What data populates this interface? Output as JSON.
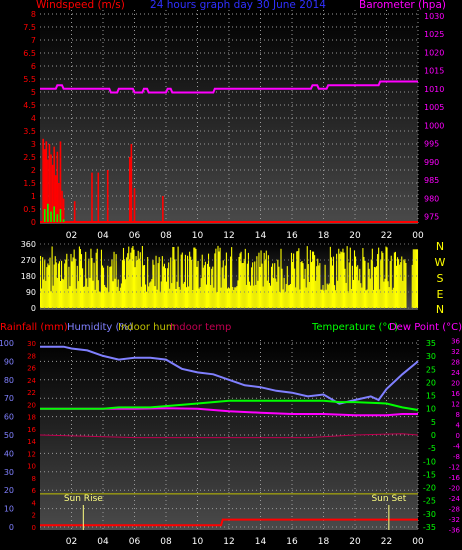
{
  "header": {
    "left_title": "Windspeed (m/s)",
    "center_title": "24 hours graph day  30 June 2014",
    "right_title": "Barometer (hpa)"
  },
  "bottom_header": {
    "rainfall": "Rainfall (mm)",
    "humidity": "Humidity (%)",
    "indoor_hum": "Indoor hum",
    "indoor_temp": "Indoor temp",
    "temperature": "Temperature (°C)",
    "dew_point": "Dew Point (°C)"
  },
  "compass": [
    "N",
    "W",
    "S",
    "E",
    "N"
  ],
  "sun_labels": {
    "rise": "Sun Rise",
    "set": "Sun Set"
  },
  "colors": {
    "wind": "#ff0000",
    "gust": "#00ff00",
    "barometer": "#ff00ff",
    "direction": "#ffff00",
    "humidity": "#8080ff",
    "temperature": "#00ff00",
    "dewpoint": "#ff00ff",
    "rain": "#ff0000",
    "indoor_temp": "#c00050",
    "indoor_hum": "#c0c000"
  },
  "chart_data": [
    {
      "type": "bar",
      "name": "Windspeed / Barometer",
      "x_ticks": [
        "02",
        "04",
        "06",
        "08",
        "10",
        "12",
        "14",
        "16",
        "18",
        "20",
        "22",
        "00"
      ],
      "y_ticks_left": [
        "0",
        "0.5",
        "1",
        "1.5",
        "2",
        "2.5",
        "3",
        "3.5",
        "4",
        "4.5",
        "5",
        "5.5",
        "6",
        "6.5",
        "7",
        "7.5",
        "8"
      ],
      "y_ticks_right": [
        "975",
        "980",
        "985",
        "990",
        "995",
        "1000",
        "1005",
        "1010",
        "1015",
        "1020",
        "1025",
        "1030"
      ],
      "ylim_left": [
        0,
        8
      ],
      "ylim_right": [
        973.5,
        1030.5
      ],
      "wind_bars": [
        {
          "x": 0.2,
          "v": 3.2
        },
        {
          "x": 0.3,
          "v": 2.8
        },
        {
          "x": 0.4,
          "v": 3.1
        },
        {
          "x": 0.5,
          "v": 2.4
        },
        {
          "x": 0.6,
          "v": 3.0
        },
        {
          "x": 0.7,
          "v": 2.6
        },
        {
          "x": 0.8,
          "v": 2.2
        },
        {
          "x": 0.9,
          "v": 2.9
        },
        {
          "x": 1.0,
          "v": 1.8
        },
        {
          "x": 1.1,
          "v": 2.7
        },
        {
          "x": 1.2,
          "v": 1.5
        },
        {
          "x": 1.3,
          "v": 3.1
        },
        {
          "x": 1.4,
          "v": 1.2
        },
        {
          "x": 1.5,
          "v": 0.9
        },
        {
          "x": 2.2,
          "v": 0.8
        },
        {
          "x": 3.3,
          "v": 1.9
        },
        {
          "x": 3.7,
          "v": 1.9
        },
        {
          "x": 4.3,
          "v": 2.0
        },
        {
          "x": 5.7,
          "v": 2.5
        },
        {
          "x": 5.8,
          "v": 3.0
        },
        {
          "x": 6.0,
          "v": 1.3
        },
        {
          "x": 7.8,
          "v": 1.0
        }
      ],
      "gust_points": [
        [
          0.3,
          0.5
        ],
        [
          0.5,
          0.7
        ],
        [
          0.7,
          0.4
        ],
        [
          0.9,
          0.6
        ],
        [
          1.1,
          0.3
        ],
        [
          1.3,
          0.5
        ],
        [
          1.5,
          0.1
        ]
      ],
      "barometer": [
        [
          0,
          1010
        ],
        [
          1.0,
          1010
        ],
        [
          1.1,
          1011
        ],
        [
          1.4,
          1011
        ],
        [
          1.5,
          1010
        ],
        [
          4.4,
          1010
        ],
        [
          4.5,
          1009
        ],
        [
          4.9,
          1009
        ],
        [
          5.0,
          1010
        ],
        [
          5.9,
          1010
        ],
        [
          6.0,
          1009
        ],
        [
          6.5,
          1009
        ],
        [
          6.6,
          1010
        ],
        [
          6.8,
          1010
        ],
        [
          6.9,
          1009
        ],
        [
          8.0,
          1009
        ],
        [
          8.1,
          1010
        ],
        [
          8.3,
          1010
        ],
        [
          8.4,
          1009
        ],
        [
          11.0,
          1009
        ],
        [
          11.1,
          1010
        ],
        [
          17.2,
          1010
        ],
        [
          17.3,
          1011
        ],
        [
          17.6,
          1011
        ],
        [
          17.7,
          1010
        ],
        [
          18.2,
          1010
        ],
        [
          18.3,
          1011
        ],
        [
          21.5,
          1011
        ],
        [
          21.6,
          1012
        ],
        [
          24,
          1012
        ]
      ]
    },
    {
      "type": "bar",
      "name": "Wind direction",
      "y_ticks": [
        "0",
        "90",
        "180",
        "270",
        "360"
      ],
      "ylim": [
        0,
        360
      ],
      "pattern": "yellow direction bars varying mostly between 90 and 350 degrees across the day"
    },
    {
      "type": "line",
      "name": "Temperature / Humidity / Rain",
      "x_ticks": [
        "02",
        "04",
        "06",
        "08",
        "10",
        "12",
        "14",
        "16",
        "18",
        "20",
        "22",
        "00"
      ],
      "y_ticks_left_a": [
        "0",
        "10",
        "20",
        "30",
        "40",
        "50",
        "60",
        "70",
        "80",
        "90",
        "100"
      ],
      "y_ticks_left_b": [
        "0",
        "2",
        "4",
        "6",
        "8",
        "10",
        "12",
        "14",
        "16",
        "18",
        "20",
        "22",
        "24",
        "26",
        "28",
        "30"
      ],
      "y_ticks_right_a": [
        "-35",
        "-30",
        "-25",
        "-20",
        "-15",
        "-10",
        "-5",
        "0",
        "5",
        "10",
        "15",
        "20",
        "25",
        "30",
        "35"
      ],
      "y_ticks_right_b": [
        "-36",
        "-34",
        "-32",
        "-30",
        "-28",
        "-26",
        "-24",
        "-22",
        "-20",
        "-18",
        "-16",
        "-14",
        "-12",
        "-10",
        "-8",
        "-6",
        "-4",
        "-2",
        "0",
        "2",
        "4",
        "6",
        "8",
        "10",
        "12",
        "14",
        "16",
        "18",
        "20",
        "22",
        "24",
        "26",
        "28",
        "30",
        "32",
        "34",
        "36"
      ],
      "ylim_humidity": [
        0,
        100
      ],
      "ylim_temperature": [
        -35,
        35
      ],
      "humidity": [
        [
          0,
          98
        ],
        [
          1.5,
          98
        ],
        [
          2.0,
          97
        ],
        [
          3.0,
          96
        ],
        [
          4.0,
          93
        ],
        [
          5.0,
          91
        ],
        [
          6.0,
          92
        ],
        [
          7.0,
          92
        ],
        [
          8.0,
          91
        ],
        [
          9.0,
          86
        ],
        [
          10.0,
          84
        ],
        [
          11.0,
          83
        ],
        [
          12.0,
          80
        ],
        [
          13.0,
          77
        ],
        [
          14.0,
          76
        ],
        [
          15.0,
          74
        ],
        [
          16.0,
          73
        ],
        [
          17.0,
          71
        ],
        [
          18.0,
          72
        ],
        [
          19.0,
          67
        ],
        [
          20.0,
          69
        ],
        [
          21.0,
          71
        ],
        [
          21.5,
          69
        ],
        [
          22.0,
          75
        ],
        [
          23.0,
          83
        ],
        [
          24,
          90
        ]
      ],
      "temperature": [
        [
          0,
          10
        ],
        [
          4.0,
          10
        ],
        [
          5.0,
          10.5
        ],
        [
          6.0,
          10.5
        ],
        [
          7.0,
          10.5
        ],
        [
          8.0,
          11
        ],
        [
          10.0,
          12
        ],
        [
          12.0,
          13
        ],
        [
          14.0,
          13
        ],
        [
          16.0,
          13
        ],
        [
          18.0,
          13
        ],
        [
          19.0,
          12.5
        ],
        [
          20.0,
          12.5
        ],
        [
          22.0,
          12
        ],
        [
          23.0,
          10.5
        ],
        [
          24,
          9.5
        ]
      ],
      "dew_point": [
        [
          0,
          10
        ],
        [
          2.0,
          10
        ],
        [
          4.0,
          10
        ],
        [
          6.0,
          10
        ],
        [
          8.0,
          10.2
        ],
        [
          10.0,
          10
        ],
        [
          11.0,
          9.5
        ],
        [
          12.0,
          9
        ],
        [
          14.0,
          8.5
        ],
        [
          16.0,
          8
        ],
        [
          18.0,
          8
        ],
        [
          20.0,
          7.5
        ],
        [
          22.0,
          7.5
        ],
        [
          23.0,
          8
        ],
        [
          24,
          8
        ]
      ],
      "indoor_temp": [
        [
          0,
          0
        ],
        [
          6.0,
          -1
        ],
        [
          12.0,
          -1
        ],
        [
          17.0,
          -1
        ],
        [
          20.0,
          0
        ],
        [
          23.0,
          0.5
        ],
        [
          24,
          0
        ]
      ],
      "indoor_hum": [
        [
          0,
          18
        ],
        [
          24,
          18
        ]
      ],
      "rain_total": [
        [
          0,
          0.3
        ],
        [
          11.5,
          0.3
        ],
        [
          11.6,
          1.2
        ],
        [
          24,
          1.2
        ]
      ],
      "sun_rise_hour": 2.75,
      "sun_set_hour": 22.15
    }
  ]
}
